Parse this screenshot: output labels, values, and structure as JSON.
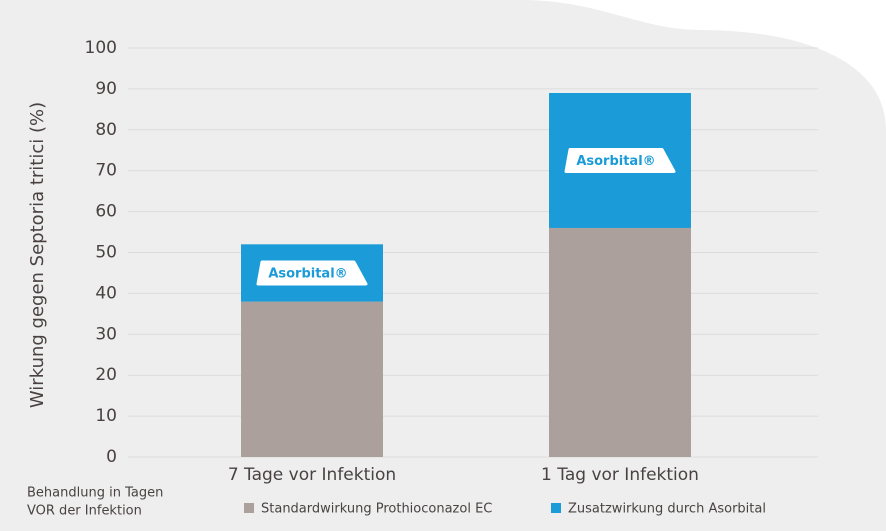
{
  "chart_data": {
    "type": "stacked_bar",
    "y_label": "Wirkung gegen Septoria tritici (%)",
    "x_note": [
      "Behandlung in Tagen",
      "VOR der Infektion"
    ],
    "categories": [
      "7 Tage vor Infektion",
      "1 Tag vor Infektion"
    ],
    "series": [
      {
        "name": "Standardwirkung Prothioconazol EC",
        "color": "#aba09b",
        "values": [
          38,
          56
        ]
      },
      {
        "name": "Zusatzwirkung durch Asorbital",
        "color": "#1b9bd7",
        "values": [
          14,
          33
        ]
      }
    ],
    "badges": [
      "Asorbital®",
      "Asorbital®"
    ],
    "ylim": [
      0,
      100
    ],
    "yticks": [
      0,
      10,
      20,
      30,
      40,
      50,
      60,
      70,
      80,
      90,
      100
    ],
    "grid": true
  }
}
